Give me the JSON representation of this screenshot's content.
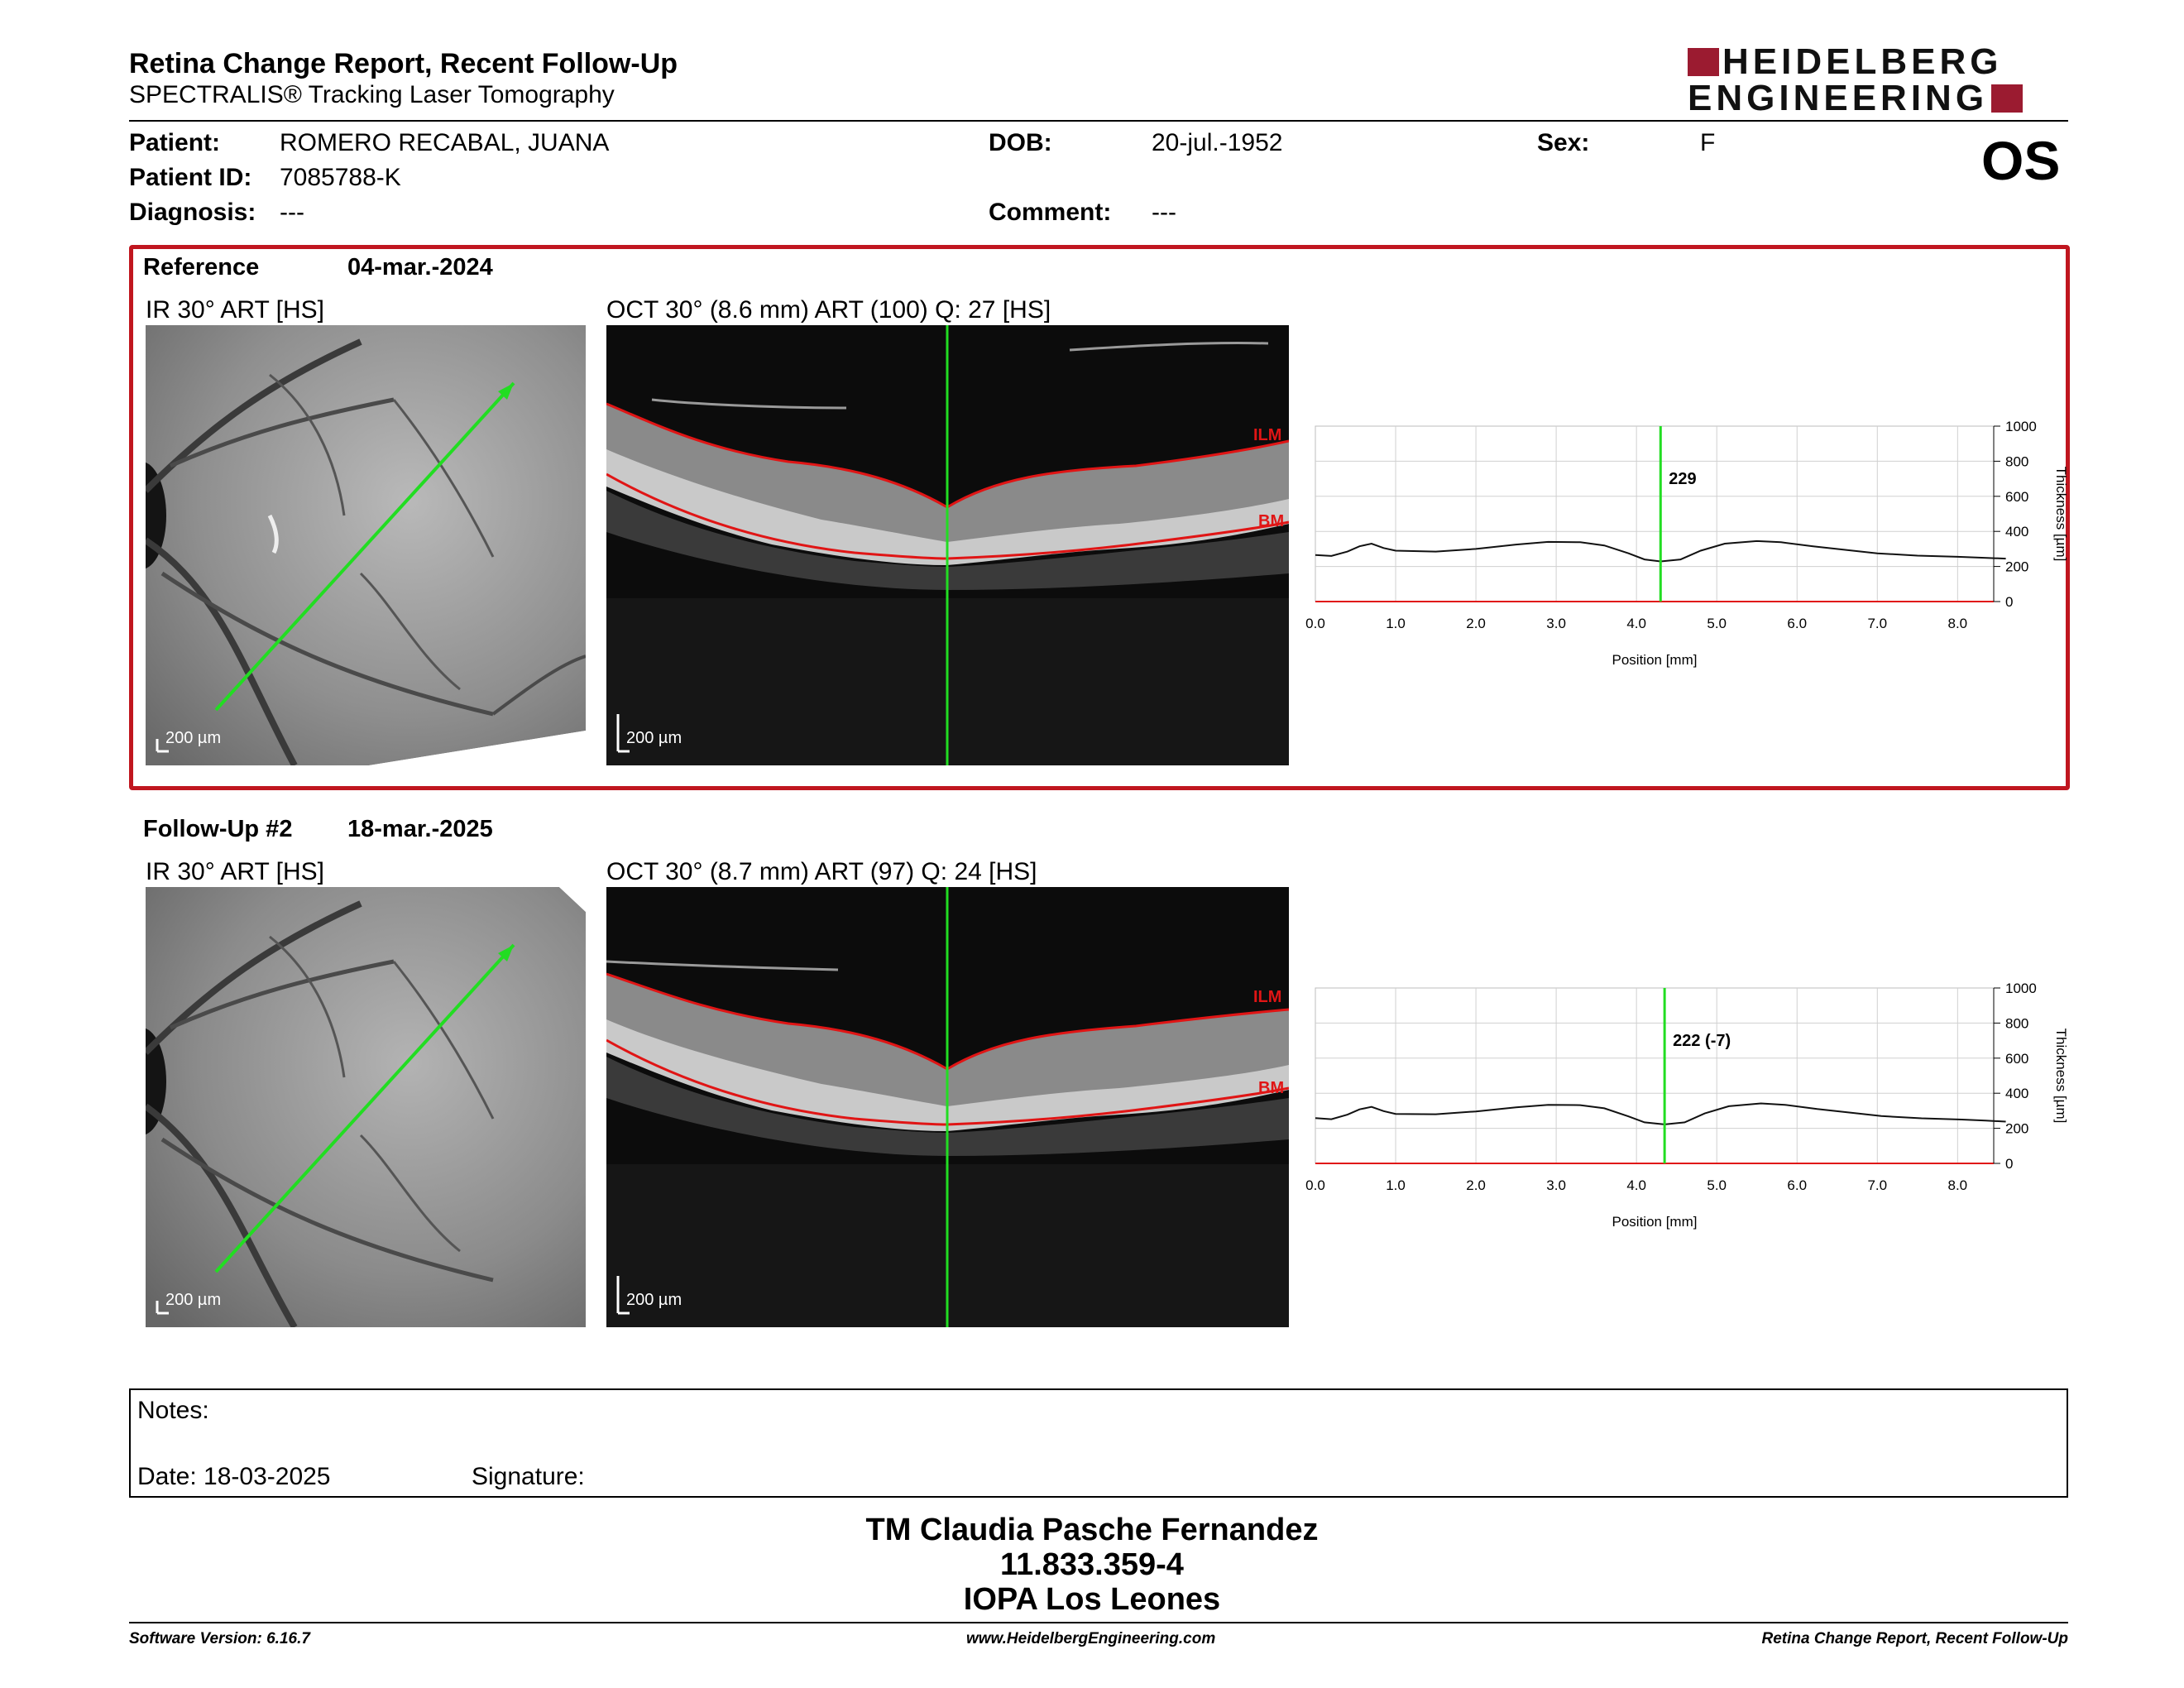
{
  "header": {
    "title": "Retina Change Report, Recent Follow-Up",
    "subtitle": "SPECTRALIS® Tracking Laser Tomography",
    "logo_line1": "HEIDELBERG",
    "logo_line2": "ENGINEERING",
    "eye": "OS"
  },
  "patient": {
    "patient_label": "Patient:",
    "patient_name": "ROMERO RECABAL, JUANA",
    "id_label": "Patient ID:",
    "id_value": "7085788-K",
    "diagnosis_label": "Diagnosis:",
    "diagnosis_value": "---",
    "dob_label": "DOB:",
    "dob_value": "20-jul.-1952",
    "comment_label": "Comment:",
    "comment_value": "---",
    "sex_label": "Sex:",
    "sex_value": "F"
  },
  "colors": {
    "brand": "#9b1b30",
    "reference_border": "#c0161f",
    "scan_line": "#22dd22",
    "layer_line": "#e01515"
  },
  "reference": {
    "label": "Reference",
    "date": "04-mar.-2024",
    "ir_label": "IR 30° ART [HS]",
    "oct_label": "OCT 30° (8.6 mm) ART (100) Q: 27 [HS]",
    "scale_ir": "200 µm",
    "scale_oct": "200 µm",
    "ilm": "ILM",
    "bm": "BM",
    "cursor_label": "229"
  },
  "followup": {
    "label": "Follow-Up #2",
    "date": "18-mar.-2025",
    "ir_label": "IR 30° ART [HS]",
    "oct_label": "OCT 30° (8.7 mm) ART (97) Q: 24 [HS]",
    "scale_ir": "200 µm",
    "scale_oct": "200 µm",
    "ilm": "ILM",
    "bm": "BM",
    "cursor_label": "222 (-7)"
  },
  "chart_data": [
    {
      "type": "line",
      "xlabel": "Position [mm]",
      "ylabel": "Thickness [µm]",
      "xlim": [
        0,
        8.6
      ],
      "ylim": [
        0,
        1000
      ],
      "x_ticks": [
        "0.0",
        "1.0",
        "2.0",
        "3.0",
        "4.0",
        "5.0",
        "6.0",
        "7.0",
        "8.0"
      ],
      "y_ticks": [
        "0",
        "200",
        "400",
        "600",
        "800",
        "1000"
      ],
      "cursor_x": 4.3,
      "cursor_value": "229",
      "series": [
        {
          "x": [
            0,
            0.2,
            0.4,
            0.55,
            0.7,
            0.85,
            1.0,
            1.5,
            2.0,
            2.5,
            2.9,
            3.3,
            3.6,
            3.9,
            4.1,
            4.3,
            4.55,
            4.8,
            5.1,
            5.5,
            5.8,
            6.2,
            6.6,
            7.0,
            7.5,
            8.0,
            8.3,
            8.6
          ],
          "y": [
            265,
            260,
            285,
            315,
            330,
            305,
            290,
            285,
            300,
            325,
            340,
            338,
            320,
            275,
            240,
            229,
            240,
            290,
            330,
            345,
            338,
            315,
            295,
            275,
            262,
            255,
            250,
            245
          ]
        }
      ]
    },
    {
      "type": "line",
      "xlabel": "Position [mm]",
      "ylabel": "Thickness [µm]",
      "xlim": [
        0,
        8.7
      ],
      "ylim": [
        0,
        1000
      ],
      "x_ticks": [
        "0.0",
        "1.0",
        "2.0",
        "3.0",
        "4.0",
        "5.0",
        "6.0",
        "7.0",
        "8.0"
      ],
      "y_ticks": [
        "0",
        "200",
        "400",
        "600",
        "800",
        "1000"
      ],
      "cursor_x": 4.35,
      "cursor_value": "222 (-7)",
      "series": [
        {
          "x": [
            0,
            0.2,
            0.4,
            0.55,
            0.7,
            0.85,
            1.0,
            1.5,
            2.0,
            2.5,
            2.9,
            3.3,
            3.6,
            3.9,
            4.1,
            4.35,
            4.6,
            4.85,
            5.15,
            5.55,
            5.85,
            6.25,
            6.65,
            7.05,
            7.55,
            8.05,
            8.35,
            8.6
          ],
          "y": [
            258,
            252,
            278,
            308,
            322,
            298,
            282,
            280,
            296,
            320,
            334,
            332,
            314,
            268,
            234,
            222,
            234,
            285,
            326,
            342,
            334,
            310,
            290,
            270,
            257,
            250,
            244,
            238
          ]
        }
      ]
    }
  ],
  "notes": {
    "label": "Notes:",
    "date_text": "Date: 18-03-2025",
    "signature_label": "Signature:"
  },
  "signature_block": {
    "line1": "TM Claudia Pasche Fernandez",
    "line2": "11.833.359-4",
    "line3": "IOPA Los Leones"
  },
  "footer": {
    "software": "Software Version: 6.16.7",
    "website": "www.HeidelbergEngineering.com",
    "report": "Retina Change Report, Recent Follow-Up"
  }
}
